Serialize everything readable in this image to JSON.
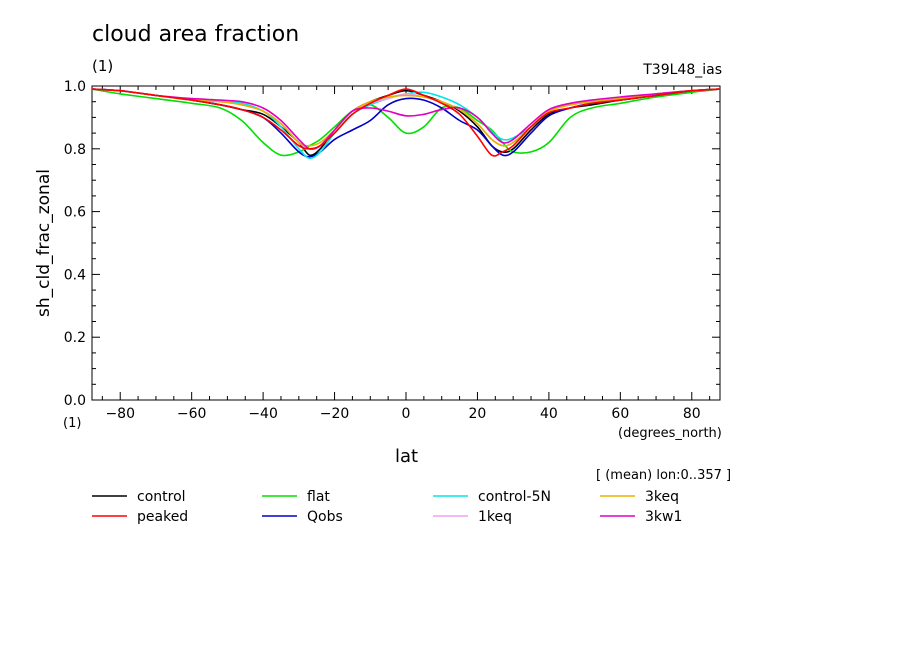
{
  "chart_data": {
    "type": "line",
    "title": "cloud area fraction",
    "title_unit": "(1)",
    "run_label": "T39L48_ias",
    "xlabel": "lat",
    "xlabel_unit": "(degrees_north)",
    "ylabel": "sh_cld_frac_zonal",
    "ylabel_unit": "(1)",
    "note": "[ (mean) lon:0..357 ]",
    "xlim": [
      -87.9,
      87.9
    ],
    "ylim": [
      0.0,
      1.0
    ],
    "xticks": [
      -80,
      -60,
      -40,
      -20,
      0,
      20,
      40,
      60,
      80
    ],
    "xtick_labels": [
      "−80",
      "−60",
      "−40",
      "−20",
      "0",
      "20",
      "40",
      "60",
      "80"
    ],
    "yticks": [
      0.0,
      0.2,
      0.4,
      0.6,
      0.8,
      1.0
    ],
    "ytick_labels": [
      "0.0",
      "0.2",
      "0.4",
      "0.6",
      "0.8",
      "1.0"
    ],
    "x": [
      -88,
      -80,
      -70,
      -60,
      -52,
      -46,
      -40,
      -35,
      -30,
      -27,
      -24,
      -20,
      -15,
      -10,
      -5,
      0,
      5,
      10,
      15,
      20,
      24,
      27,
      30,
      35,
      40,
      46,
      52,
      60,
      70,
      80,
      88
    ],
    "series": [
      {
        "name": "control",
        "color": "#000000",
        "values": [
          0.99,
          0.985,
          0.97,
          0.955,
          0.94,
          0.925,
          0.91,
          0.87,
          0.82,
          0.78,
          0.8,
          0.86,
          0.92,
          0.95,
          0.97,
          0.985,
          0.97,
          0.95,
          0.92,
          0.87,
          0.81,
          0.79,
          0.8,
          0.86,
          0.91,
          0.93,
          0.94,
          0.955,
          0.97,
          0.985,
          0.99
        ]
      },
      {
        "name": "peaked",
        "color": "#ff0000",
        "values": [
          0.99,
          0.985,
          0.97,
          0.955,
          0.94,
          0.925,
          0.9,
          0.86,
          0.81,
          0.8,
          0.81,
          0.85,
          0.91,
          0.945,
          0.97,
          0.99,
          0.97,
          0.945,
          0.91,
          0.84,
          0.78,
          0.79,
          0.81,
          0.87,
          0.915,
          0.93,
          0.945,
          0.955,
          0.97,
          0.985,
          0.99
        ]
      },
      {
        "name": "flat",
        "color": "#00e000",
        "values": [
          0.99,
          0.975,
          0.96,
          0.945,
          0.93,
          0.89,
          0.82,
          0.78,
          0.79,
          0.81,
          0.83,
          0.87,
          0.92,
          0.94,
          0.9,
          0.85,
          0.87,
          0.93,
          0.93,
          0.89,
          0.86,
          0.82,
          0.79,
          0.79,
          0.82,
          0.9,
          0.93,
          0.945,
          0.965,
          0.98,
          0.99
        ]
      },
      {
        "name": "Qobs",
        "color": "#0000c8",
        "values": [
          0.99,
          0.985,
          0.97,
          0.955,
          0.94,
          0.925,
          0.9,
          0.85,
          0.79,
          0.775,
          0.79,
          0.83,
          0.86,
          0.89,
          0.94,
          0.96,
          0.955,
          0.93,
          0.89,
          0.86,
          0.81,
          0.78,
          0.79,
          0.85,
          0.905,
          0.93,
          0.945,
          0.955,
          0.97,
          0.985,
          0.99
        ]
      },
      {
        "name": "control-5N",
        "color": "#00e5e5",
        "values": [
          0.99,
          0.985,
          0.97,
          0.955,
          0.95,
          0.945,
          0.92,
          0.87,
          0.8,
          0.77,
          0.79,
          0.85,
          0.91,
          0.94,
          0.96,
          0.975,
          0.98,
          0.965,
          0.94,
          0.9,
          0.855,
          0.83,
          0.835,
          0.87,
          0.92,
          0.94,
          0.95,
          0.96,
          0.975,
          0.985,
          0.99
        ]
      },
      {
        "name": "1keq",
        "color": "#f0a0f0",
        "values": [
          0.99,
          0.985,
          0.97,
          0.955,
          0.95,
          0.94,
          0.92,
          0.88,
          0.82,
          0.8,
          0.81,
          0.86,
          0.92,
          0.945,
          0.96,
          0.975,
          0.965,
          0.95,
          0.925,
          0.88,
          0.83,
          0.81,
          0.82,
          0.87,
          0.92,
          0.94,
          0.95,
          0.96,
          0.975,
          0.985,
          0.99
        ]
      },
      {
        "name": "3keq",
        "color": "#e8b000",
        "values": [
          0.99,
          0.985,
          0.97,
          0.955,
          0.95,
          0.94,
          0.92,
          0.88,
          0.82,
          0.81,
          0.82,
          0.86,
          0.92,
          0.95,
          0.965,
          0.97,
          0.965,
          0.95,
          0.925,
          0.88,
          0.83,
          0.81,
          0.82,
          0.87,
          0.92,
          0.94,
          0.95,
          0.96,
          0.975,
          0.985,
          0.99
        ]
      },
      {
        "name": "3kw1",
        "color": "#e000c0",
        "values": [
          0.99,
          0.985,
          0.97,
          0.96,
          0.955,
          0.95,
          0.93,
          0.89,
          0.83,
          0.8,
          0.81,
          0.86,
          0.92,
          0.93,
          0.92,
          0.905,
          0.91,
          0.925,
          0.93,
          0.9,
          0.85,
          0.82,
          0.83,
          0.88,
          0.925,
          0.945,
          0.955,
          0.965,
          0.975,
          0.985,
          0.99
        ]
      }
    ],
    "legend": {
      "placement": "below",
      "columns": 4
    },
    "grid": false
  }
}
